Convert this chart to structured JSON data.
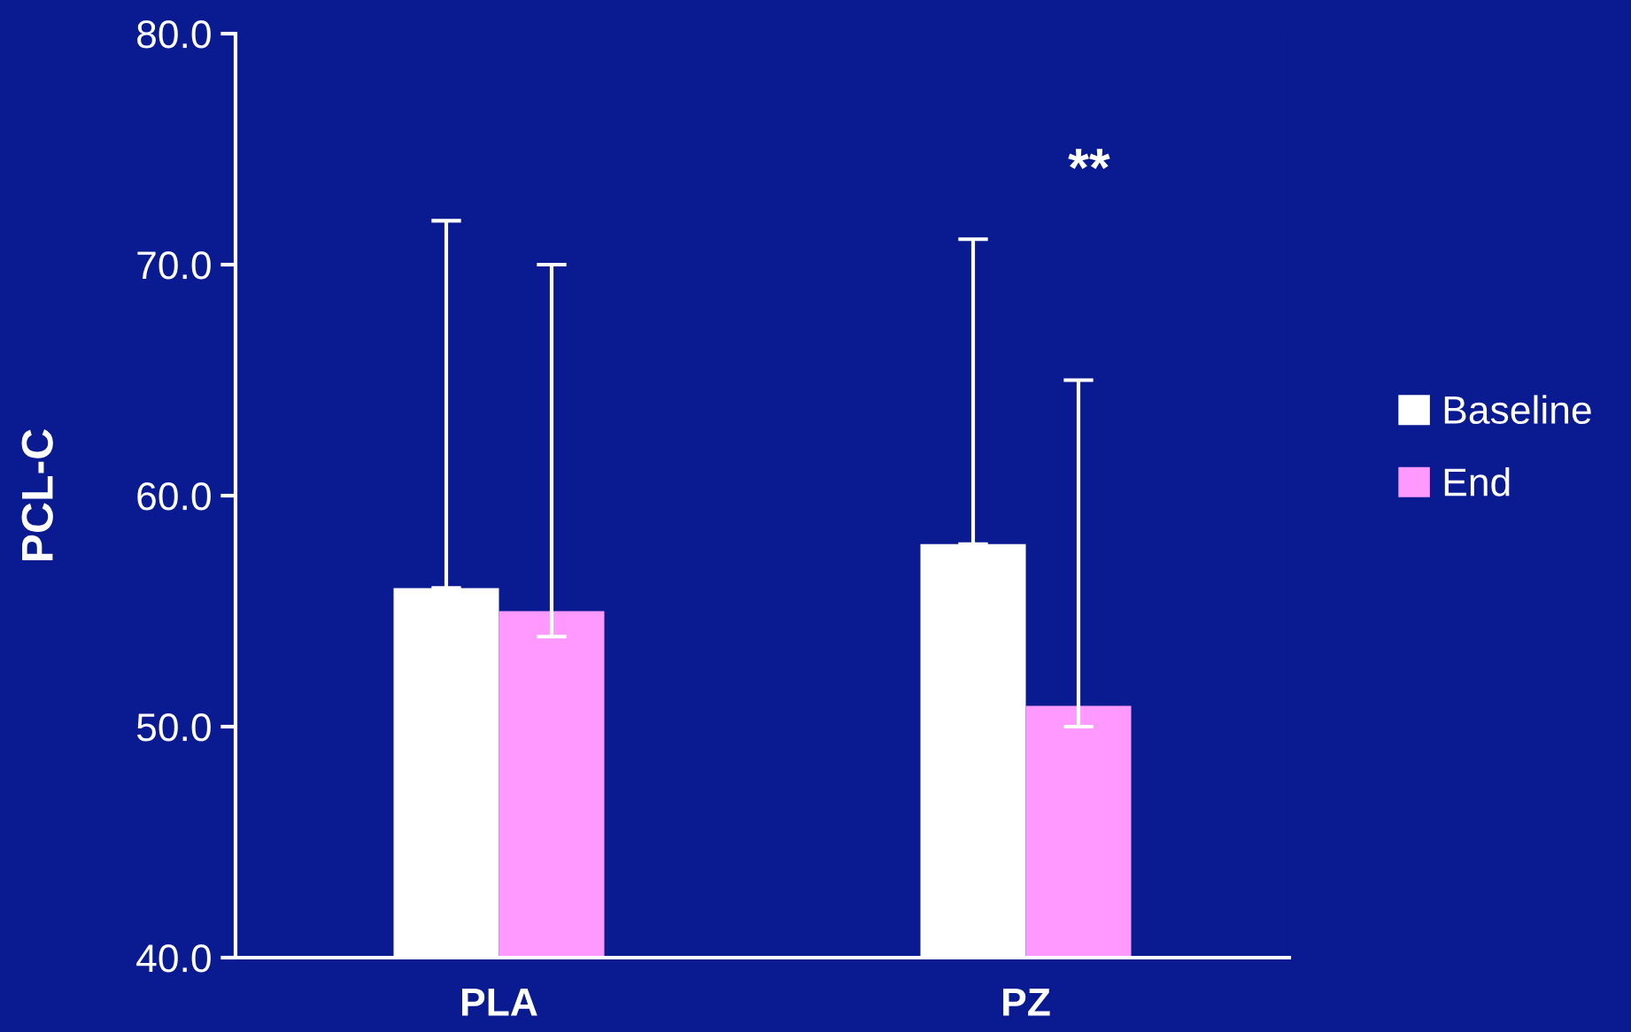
{
  "chart_data": {
    "type": "bar",
    "ylabel": "PCL-C",
    "categories": [
      "PLA",
      "PZ"
    ],
    "series": [
      {
        "name": "Baseline",
        "color": "#ffffff",
        "values": [
          56.0,
          57.9
        ],
        "errors": [
          [
            56.0,
            71.9
          ],
          [
            57.9,
            71.1
          ]
        ]
      },
      {
        "name": "End",
        "color": "#ff99ff",
        "values": [
          55.0,
          50.9
        ],
        "errors": [
          [
            53.9,
            70.0
          ],
          [
            50.0,
            65.0
          ]
        ]
      }
    ],
    "ylim": [
      40,
      80
    ],
    "yticks": [
      {
        "value": 40,
        "label": "40.0"
      },
      {
        "value": 50,
        "label": "50.0"
      },
      {
        "value": 60,
        "label": "60.0"
      },
      {
        "value": 70,
        "label": "70.0"
      },
      {
        "value": 80,
        "label": "80.0"
      }
    ],
    "annotations": [
      "**"
    ],
    "legend": "right",
    "grid": false
  }
}
